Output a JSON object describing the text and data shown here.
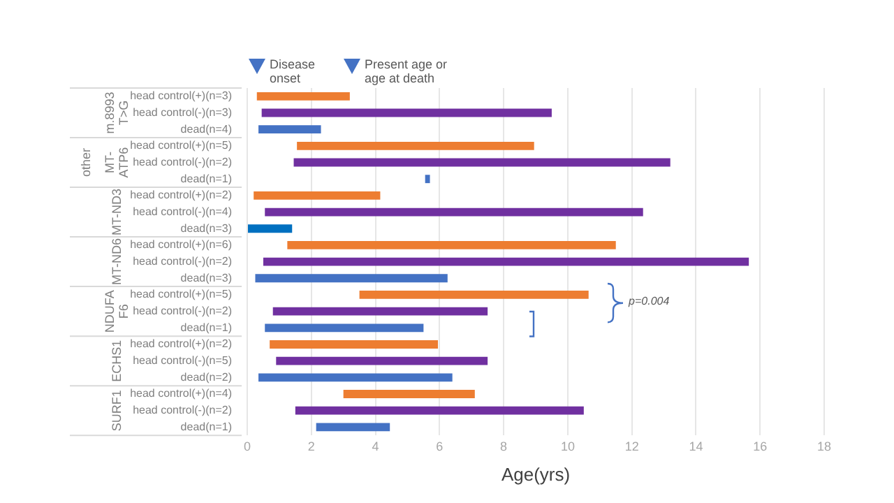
{
  "chart_data": {
    "type": "bar",
    "orientation": "horizontal",
    "xlabel": "Age(yrs)",
    "categories": [
      "head control(+)(n=3)",
      "head control(-)(n=3)",
      "dead(n=4)",
      "head control(+)(n=5)",
      "head control(-)(n=2)",
      "dead(n=1)",
      "head control(+)(n=2)",
      "head control(-)(n=4)",
      "dead(n=3)",
      "head control(+)(n=6)",
      "head control(-)(n=2)",
      "dead(n=3)",
      "head control(+)(n=5)",
      "head control(-)(n=2)",
      "dead(n=1)",
      "head control(+)(n=2)",
      "head control(-)(n=5)",
      "dead(n=2)",
      "head control(+)(n=4)",
      "head control(-)(n=2)",
      "dead(n=1)"
    ],
    "base": [
      0.3,
      0.45,
      0.35,
      1.55,
      1.45,
      5.55,
      0.2,
      0.55,
      0.0,
      1.25,
      0.5,
      0.25,
      3.5,
      0.8,
      0.55,
      0.7,
      0.9,
      0.35,
      3.0,
      1.5,
      2.15
    ],
    "values": [
      2.9,
      9.05,
      1.95,
      7.4,
      11.75,
      0.15,
      3.95,
      11.8,
      1.4,
      10.25,
      15.15,
      6.0,
      7.15,
      6.7,
      4.95,
      5.25,
      6.6,
      6.05,
      4.1,
      9.0,
      2.3
    ],
    "colors": [
      "#ed7d31",
      "#7030a0",
      "#4472c4",
      "#ed7d31",
      "#7030a0",
      "#4472c4",
      "#ed7d31",
      "#7030a0",
      "#0070c0",
      "#ed7d31",
      "#7030a0",
      "#4472c4",
      "#ed7d31",
      "#7030a0",
      "#4472c4",
      "#ed7d31",
      "#7030a0",
      "#4472c4",
      "#ed7d31",
      "#7030a0",
      "#4472c4"
    ],
    "xlim": [
      0,
      18
    ],
    "xticks": [
      0,
      2,
      4,
      6,
      8,
      10,
      12,
      14,
      16,
      18
    ],
    "grid": "x",
    "annotations": [
      "m.8993T>G",
      "other",
      "MT-ATP6",
      "MT-ND3",
      "MT-ND6",
      "NDUFAF6",
      "ECHS1",
      "SURF1",
      "Disease onset",
      "Present age or age at death",
      "p=0.004"
    ]
  }
}
